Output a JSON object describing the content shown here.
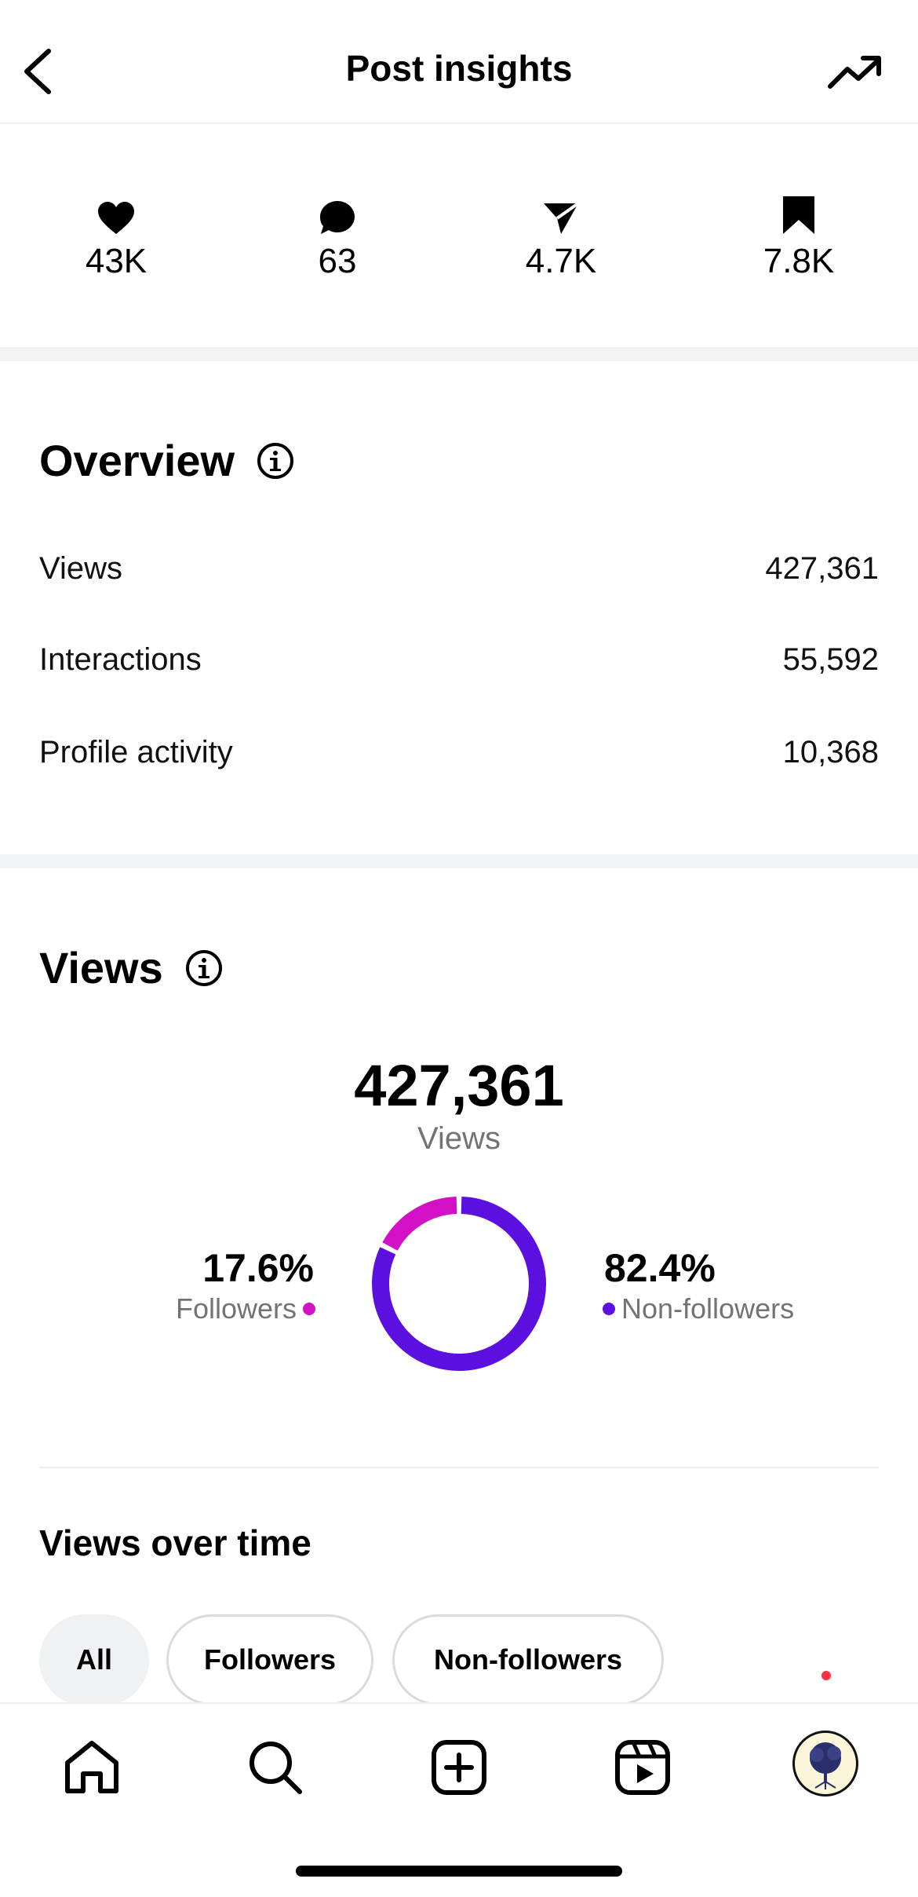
{
  "header": {
    "title": "Post insights",
    "back_icon": "chevron-left-icon",
    "trend_icon": "trending-up-icon"
  },
  "stats": [
    {
      "icon": "heart-icon",
      "value": "43K"
    },
    {
      "icon": "comment-icon",
      "value": "63"
    },
    {
      "icon": "share-icon",
      "value": "4.7K"
    },
    {
      "icon": "bookmark-icon",
      "value": "7.8K"
    }
  ],
  "overview": {
    "title": "Overview",
    "rows": [
      {
        "label": "Views",
        "value": "427,361"
      },
      {
        "label": "Interactions",
        "value": "55,592"
      },
      {
        "label": "Profile activity",
        "value": "10,368"
      }
    ]
  },
  "views": {
    "title": "Views",
    "total": "427,361",
    "total_label": "Views",
    "followers": {
      "pct": "17.6%",
      "label": "Followers",
      "fraction": 0.176,
      "color": "#d211c7"
    },
    "non_followers": {
      "pct": "82.4%",
      "label": "Non-followers",
      "fraction": 0.824,
      "color": "#5b10e0"
    }
  },
  "views_over_time": {
    "title": "Views over time",
    "chips": [
      {
        "label": "All",
        "active": true
      },
      {
        "label": "Followers",
        "active": false
      },
      {
        "label": "Non-followers",
        "active": false
      }
    ]
  },
  "tabbar": {
    "items": [
      "home-icon",
      "search-icon",
      "create-icon",
      "reels-icon",
      "profile-avatar"
    ],
    "notification": true
  }
}
